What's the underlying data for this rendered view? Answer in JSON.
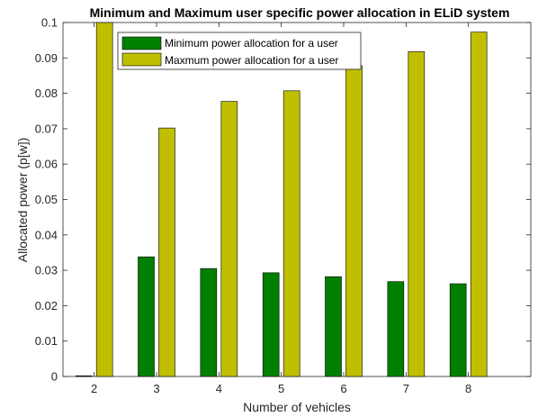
{
  "chart_data": {
    "type": "bar",
    "title": "Minimum and Maximum user specific power allocation in ELiD system",
    "xlabel": "Number of vehicles",
    "ylabel": "Allocated power (p[w])",
    "categories": [
      "2",
      "3",
      "4",
      "5",
      "6",
      "7",
      "8"
    ],
    "ylim": [
      0,
      0.1
    ],
    "yticks": [
      "0",
      "0.01",
      "0.02",
      "0.03",
      "0.04",
      "0.05",
      "0.06",
      "0.07",
      "0.08",
      "0.09",
      "0.1"
    ],
    "grid": false,
    "legend_position": "top-left",
    "series": [
      {
        "name": "Minimum power allocation for a user",
        "color": "#007f00",
        "values": [
          0.0002,
          0.0338,
          0.0305,
          0.0293,
          0.0282,
          0.0268,
          0.0262
        ]
      },
      {
        "name": "Maxmum power allocation for a user",
        "color": "#bfbf00",
        "values": [
          0.1,
          0.0702,
          0.0777,
          0.0807,
          0.0878,
          0.0918,
          0.0973
        ]
      }
    ]
  }
}
